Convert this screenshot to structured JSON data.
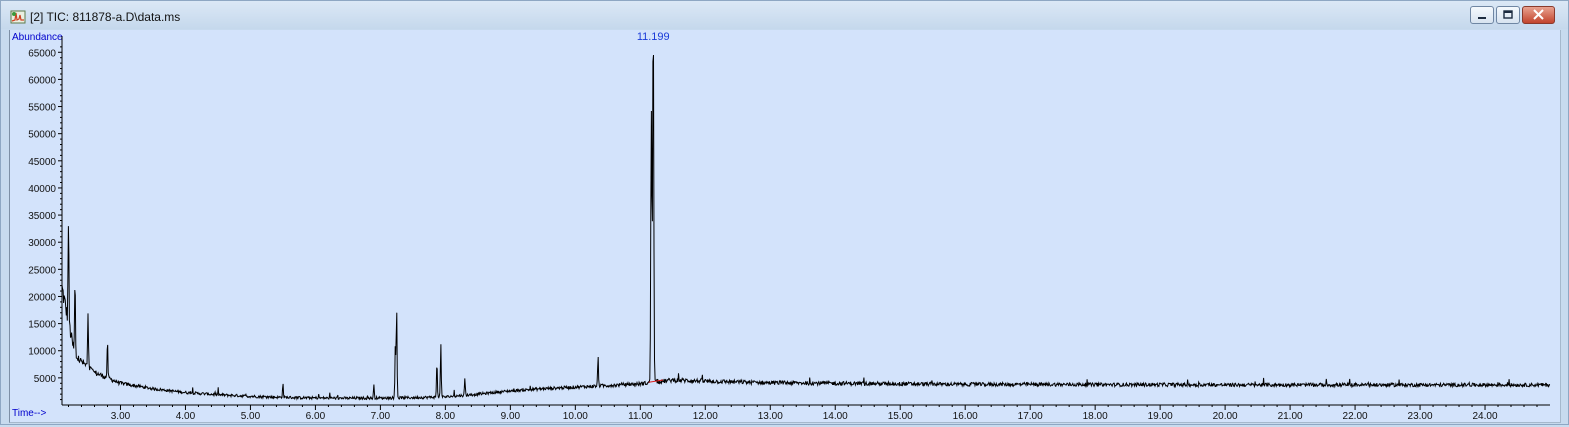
{
  "window": {
    "title": "[2] TIC: 811878-a.D\\data.ms",
    "buttons": [
      "minimize",
      "maximize",
      "close"
    ]
  },
  "chart_data": {
    "type": "line",
    "ylabel": "Abundance",
    "xlabel": "Time-->",
    "xlim": [
      2.1,
      25.0
    ],
    "ylim": [
      0,
      68000
    ],
    "x_ticks": [
      3.0,
      4.0,
      5.0,
      6.0,
      7.0,
      8.0,
      9.0,
      10.0,
      11.0,
      12.0,
      13.0,
      14.0,
      15.0,
      16.0,
      17.0,
      18.0,
      19.0,
      20.0,
      21.0,
      22.0,
      23.0,
      24.0
    ],
    "x_tick_labels": [
      "3.00",
      "4.00",
      "5.00",
      "6.00",
      "7.00",
      "8.00",
      "9.00",
      "10.00",
      "11.00",
      "12.00",
      "13.00",
      "14.00",
      "15.00",
      "16.00",
      "17.00",
      "18.00",
      "19.00",
      "20.00",
      "21.00",
      "22.00",
      "23.00",
      "24.00"
    ],
    "y_ticks": [
      5000,
      10000,
      15000,
      20000,
      25000,
      30000,
      35000,
      40000,
      45000,
      50000,
      55000,
      60000,
      65000
    ],
    "y_tick_labels": [
      "5000",
      "10000",
      "15000",
      "20000",
      "25000",
      "30000",
      "35000",
      "40000",
      "45000",
      "50000",
      "55000",
      "60000",
      "65000"
    ],
    "baseline": {
      "x": [
        2.1,
        2.3,
        2.6,
        3.0,
        3.5,
        4.0,
        4.5,
        5.0,
        5.5,
        6.0,
        6.5,
        7.0,
        7.5,
        8.0,
        8.5,
        9.0,
        9.5,
        10.0,
        10.5,
        11.0,
        11.5,
        12.0,
        13.0,
        14.0,
        15.0,
        16.0,
        17.0,
        18.0,
        19.0,
        20.0,
        21.0,
        22.0,
        23.0,
        24.0,
        25.0
      ],
      "y": [
        21500,
        9000,
        6000,
        4000,
        3000,
        2300,
        1900,
        1600,
        1400,
        1300,
        1250,
        1300,
        1350,
        1500,
        2000,
        2600,
        3000,
        3300,
        3600,
        3900,
        4600,
        4400,
        4100,
        4000,
        3900,
        3800,
        3800,
        3750,
        3750,
        3700,
        3700,
        3700,
        3700,
        3700,
        3700
      ]
    },
    "peaks": [
      {
        "rt": 2.2,
        "height": 19000
      },
      {
        "rt": 2.3,
        "height": 14000
      },
      {
        "rt": 2.5,
        "height": 9500
      },
      {
        "rt": 2.8,
        "height": 6500
      },
      {
        "rt": 5.5,
        "height": 2500
      },
      {
        "rt": 6.9,
        "height": 2300
      },
      {
        "rt": 7.25,
        "height": 17000
      },
      {
        "rt": 7.23,
        "height": 10000
      },
      {
        "rt": 7.87,
        "height": 6500
      },
      {
        "rt": 7.93,
        "height": 10000
      },
      {
        "rt": 8.3,
        "height": 3000
      },
      {
        "rt": 10.35,
        "height": 5500
      },
      {
        "rt": 11.17,
        "height": 50000
      },
      {
        "rt": 11.199,
        "height": 66500
      }
    ],
    "annotations": [
      {
        "x": 11.199,
        "y": 66500,
        "text": "11.199"
      }
    ],
    "line_color": "#000000",
    "background_color": "#d3e3fb",
    "label_color": "#0000cc"
  }
}
